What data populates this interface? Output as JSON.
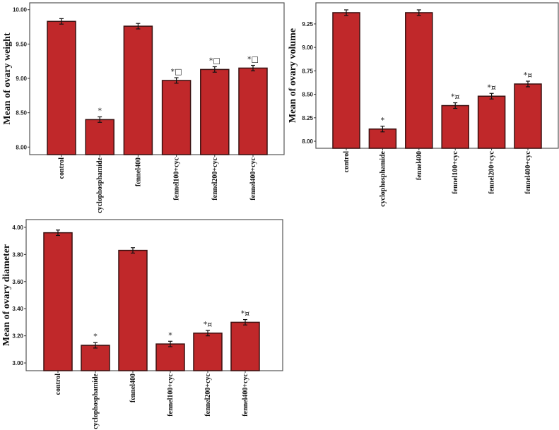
{
  "colors": {
    "bar": "#c0282a",
    "bar_edge": "#3a1010",
    "frame": "#555555",
    "error": "#111111"
  },
  "chart_data": [
    {
      "type": "bar",
      "title": "",
      "xlabel": "",
      "ylabel": "Mean of ovary weight",
      "ylim": [
        7.89,
        10.1
      ],
      "yticks": [
        8.0,
        8.5,
        9.0,
        9.5,
        10.0
      ],
      "ytick_labels": [
        "8.00",
        "8.50",
        "9.00",
        "9.50",
        "10.00"
      ],
      "categories": [
        "control",
        "cyclophosphamide",
        "fennel400",
        "fennel100+cyc",
        "fennel200+cyc",
        "fennel400+cyc"
      ],
      "values": [
        9.83,
        8.4,
        9.76,
        8.97,
        9.13,
        9.15
      ],
      "errors": [
        0.04,
        0.04,
        0.04,
        0.04,
        0.04,
        0.04
      ],
      "annotations": [
        "",
        "*",
        "",
        "*□",
        "*□",
        "*□"
      ],
      "grid": false
    },
    {
      "type": "bar",
      "title": "",
      "xlabel": "",
      "ylabel": "Mean of ovary volume",
      "ylim": [
        7.925,
        9.475
      ],
      "yticks": [
        8.0,
        8.25,
        8.5,
        8.75,
        9.0,
        9.25
      ],
      "ytick_labels": [
        "8.00",
        "8.25",
        "8.50",
        "8.75",
        "9.00",
        "9.25"
      ],
      "categories": [
        "control",
        "cyclophosphamide",
        "fennel400",
        "fennel100+cyc",
        "fennel200+cyc",
        "fennel400+cyc"
      ],
      "values": [
        9.37,
        8.13,
        9.37,
        8.38,
        8.48,
        8.61
      ],
      "errors": [
        0.03,
        0.03,
        0.03,
        0.03,
        0.03,
        0.03
      ],
      "annotations": [
        "",
        "*",
        "",
        "*¤",
        "*¤",
        "*¤"
      ],
      "grid": false
    },
    {
      "type": "bar",
      "title": "",
      "xlabel": "",
      "ylabel": "Mean of ovary diameter",
      "ylim": [
        2.943,
        4.057
      ],
      "yticks": [
        3.0,
        3.2,
        3.4,
        3.6,
        3.8,
        4.0
      ],
      "ytick_labels": [
        "3.00",
        "3.20",
        "3.40",
        "3.60",
        "3.80",
        "4.00"
      ],
      "categories": [
        "control",
        "cyclophosphamide",
        "fennel400",
        "fennel100+cyc",
        "fennel200+cyc",
        "fennel400+cyc"
      ],
      "values": [
        3.96,
        3.13,
        3.83,
        3.14,
        3.22,
        3.3
      ],
      "errors": [
        0.02,
        0.02,
        0.02,
        0.02,
        0.02,
        0.02
      ],
      "annotations": [
        "",
        "*",
        "",
        "*",
        "*¤",
        "*¤"
      ],
      "grid": false
    }
  ]
}
